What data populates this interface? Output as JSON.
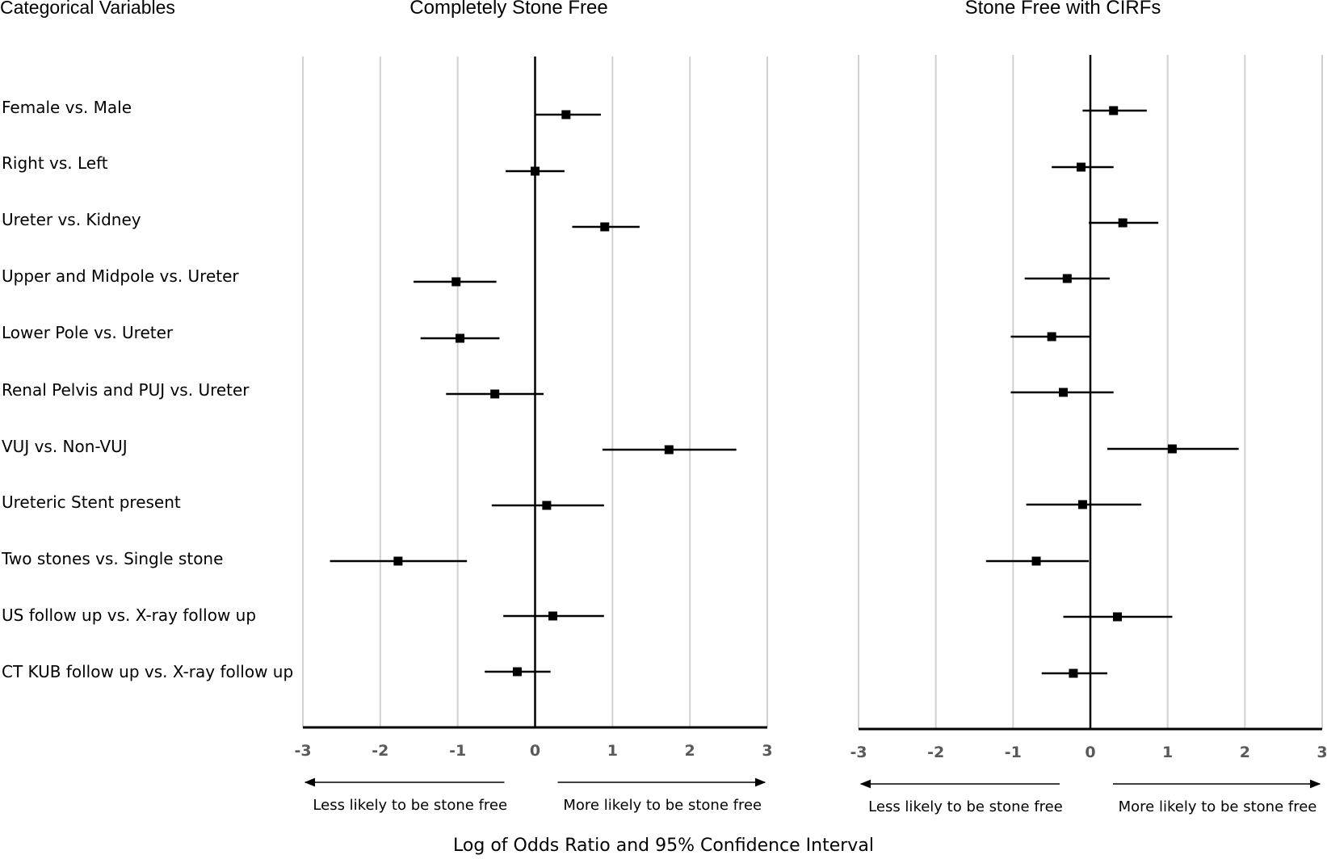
{
  "header": {
    "left_label": "Categorical Variables"
  },
  "footer": {
    "xlabel": "Log of Odds Ratio and 95% Confidence Interval"
  },
  "categories": [
    "Female vs. Male",
    "Right vs. Left",
    "Ureter vs. Kidney",
    "Upper and Midpole vs. Ureter",
    "Lower Pole vs. Ureter",
    "Renal Pelvis and PUJ vs. Ureter",
    "VUJ vs. Non-VUJ",
    "Ureteric Stent present",
    "Two stones vs. Single stone",
    "US follow up vs. X-ray follow up",
    "CT KUB follow up vs. X-ray follow up"
  ],
  "direction_labels": {
    "left": "Less likely to be stone free",
    "right": "More likely to be stone free"
  },
  "chart_data": [
    {
      "type": "scatter",
      "title": "Completely Stone Free",
      "xlim": [
        -3,
        3
      ],
      "ticks": [
        -3,
        -2,
        -1,
        0,
        1,
        2,
        3
      ],
      "points": [
        {
          "category": "Female vs. Male",
          "estimate": 0.4,
          "lower": 0.0,
          "upper": 0.85
        },
        {
          "category": "Right vs. Left",
          "estimate": 0.0,
          "lower": -0.38,
          "upper": 0.38
        },
        {
          "category": "Ureter vs. Kidney",
          "estimate": 0.9,
          "lower": 0.48,
          "upper": 1.35
        },
        {
          "category": "Upper and Midpole vs. Ureter",
          "estimate": -1.02,
          "lower": -1.57,
          "upper": -0.5
        },
        {
          "category": "Lower Pole vs. Ureter",
          "estimate": -0.97,
          "lower": -1.48,
          "upper": -0.46
        },
        {
          "category": "Renal Pelvis and PUJ vs. Ureter",
          "estimate": -0.52,
          "lower": -1.15,
          "upper": 0.11
        },
        {
          "category": "VUJ vs. Non-VUJ",
          "estimate": 1.73,
          "lower": 0.87,
          "upper": 2.6
        },
        {
          "category": "Ureteric Stent present",
          "estimate": 0.15,
          "lower": -0.56,
          "upper": 0.89
        },
        {
          "category": "Two stones vs. Single stone",
          "estimate": -1.77,
          "lower": -2.65,
          "upper": -0.88
        },
        {
          "category": "US follow up vs. X-ray follow up",
          "estimate": 0.23,
          "lower": -0.41,
          "upper": 0.89
        },
        {
          "category": "CT KUB follow up vs. X-ray follow up",
          "estimate": -0.23,
          "lower": -0.65,
          "upper": 0.2
        }
      ]
    },
    {
      "type": "scatter",
      "title": "Stone Free with CIRFs",
      "xlim": [
        -3,
        3
      ],
      "ticks": [
        -3,
        -2,
        -1,
        0,
        1,
        2,
        3
      ],
      "points": [
        {
          "category": "Female vs. Male",
          "estimate": 0.3,
          "lower": -0.1,
          "upper": 0.73
        },
        {
          "category": "Right vs. Left",
          "estimate": -0.12,
          "lower": -0.5,
          "upper": 0.3
        },
        {
          "category": "Ureter vs. Kidney",
          "estimate": 0.42,
          "lower": -0.02,
          "upper": 0.88
        },
        {
          "category": "Upper and Midpole vs. Ureter",
          "estimate": -0.3,
          "lower": -0.85,
          "upper": 0.25
        },
        {
          "category": "Lower Pole vs. Ureter",
          "estimate": -0.5,
          "lower": -1.03,
          "upper": 0.0
        },
        {
          "category": "Renal Pelvis and PUJ vs. Ureter",
          "estimate": -0.35,
          "lower": -1.03,
          "upper": 0.3
        },
        {
          "category": "VUJ vs. Non-VUJ",
          "estimate": 1.06,
          "lower": 0.22,
          "upper": 1.92
        },
        {
          "category": "Ureteric Stent present",
          "estimate": -0.1,
          "lower": -0.83,
          "upper": 0.66
        },
        {
          "category": "Two stones vs. Single stone",
          "estimate": -0.7,
          "lower": -1.35,
          "upper": -0.02
        },
        {
          "category": "US follow up vs. X-ray follow up",
          "estimate": 0.35,
          "lower": -0.35,
          "upper": 1.06
        },
        {
          "category": "CT KUB follow up vs. X-ray follow up",
          "estimate": -0.22,
          "lower": -0.63,
          "upper": 0.22
        }
      ]
    }
  ]
}
